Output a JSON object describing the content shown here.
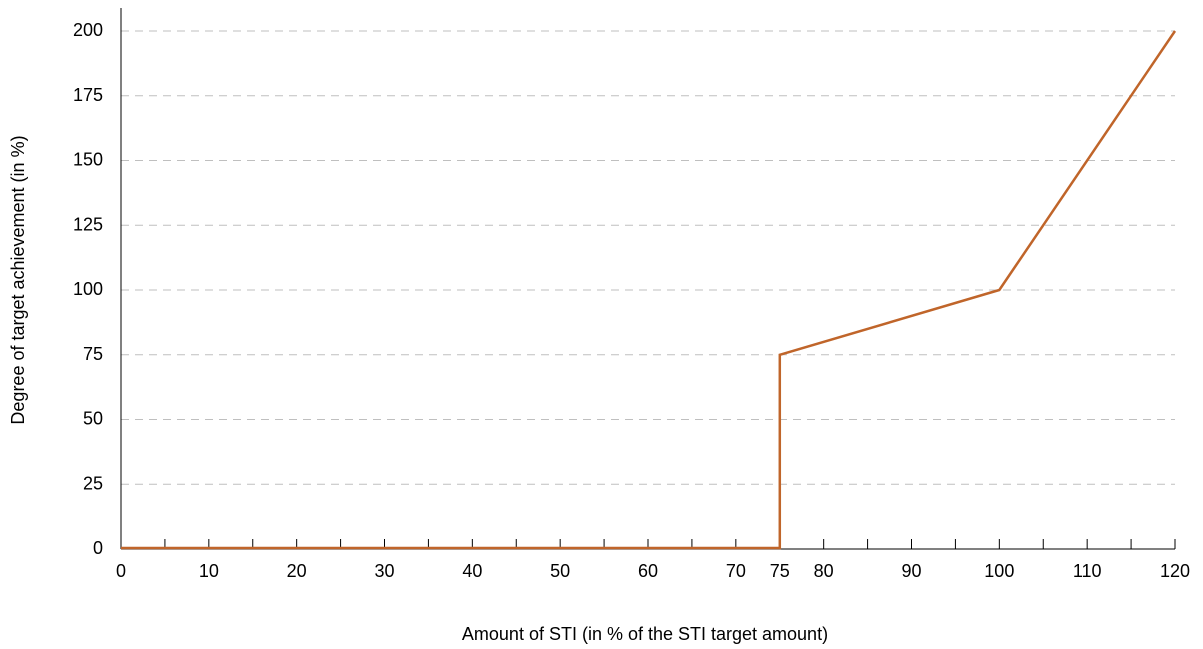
{
  "chart_data": {
    "type": "line",
    "title": "",
    "xlabel": "Amount of STI (in % of the STI target amount)",
    "ylabel": "Degree of target achievement (in %)",
    "xlim": [
      0,
      120
    ],
    "ylim": [
      0,
      200
    ],
    "x_tick_labels": [
      "0",
      "10",
      "20",
      "30",
      "40",
      "50",
      "60",
      "70",
      "75",
      "80",
      "90",
      "100",
      "110",
      "120"
    ],
    "x_minor_ticks": [
      5,
      15,
      25,
      35,
      45,
      55,
      65,
      85,
      95,
      105,
      115
    ],
    "y_tick_labels": [
      "0",
      "25",
      "50",
      "75",
      "100",
      "125",
      "150",
      "175",
      "200"
    ],
    "grid": "horizontal dashed",
    "legend": "none",
    "series": [
      {
        "color": "#C0652A",
        "points": [
          [
            0,
            0
          ],
          [
            75,
            0
          ],
          [
            75,
            75
          ],
          [
            100,
            100
          ],
          [
            120,
            200
          ]
        ]
      }
    ]
  }
}
